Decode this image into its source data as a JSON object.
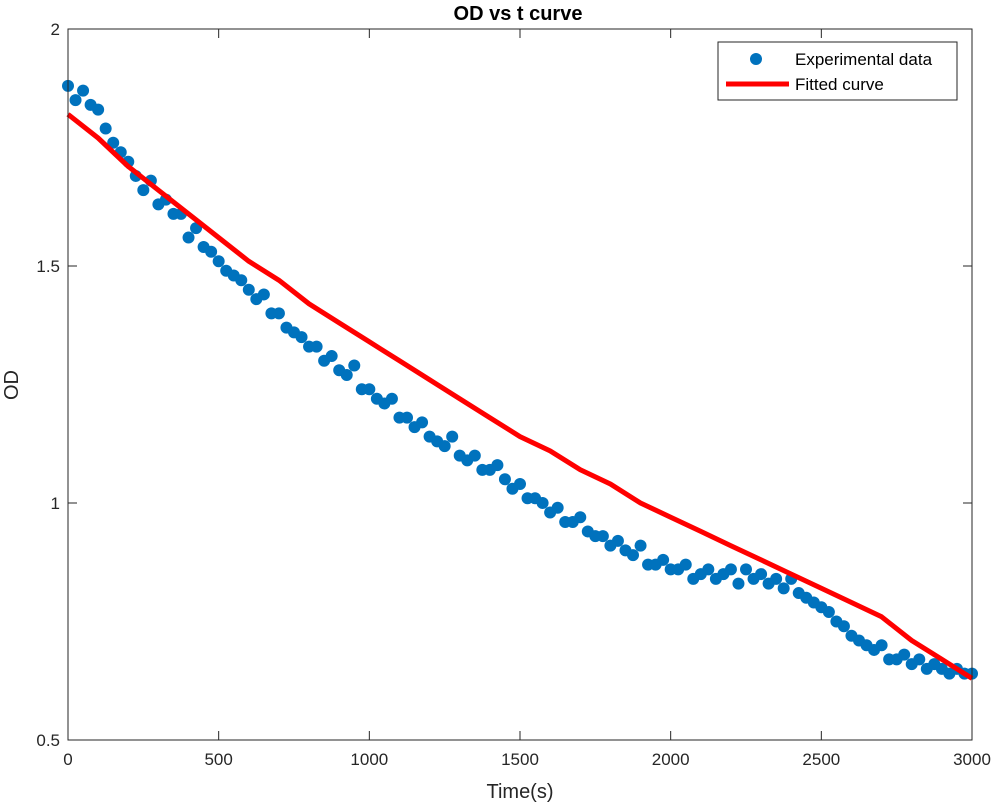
{
  "chart_data": {
    "type": "scatter",
    "title": "OD vs t curve",
    "xlabel": "Time(s)",
    "ylabel": "OD",
    "xlim": [
      0,
      3000
    ],
    "ylim": [
      0.5,
      2
    ],
    "xticks": [
      0,
      500,
      1000,
      1500,
      2000,
      2500,
      3000
    ],
    "yticks": [
      0.5,
      1,
      1.5,
      2
    ],
    "xtick_labels": [
      "0",
      "500",
      "1000",
      "1500",
      "2000",
      "2500",
      "3000"
    ],
    "ytick_labels": [
      "0.5",
      "1",
      "1.5",
      "2"
    ],
    "grid": false,
    "legend_position": "top-right",
    "series": [
      {
        "name": "Experimental data",
        "kind": "scatter",
        "color": "#0072BD",
        "x": [
          0,
          25,
          50,
          75,
          100,
          125,
          150,
          175,
          200,
          225,
          250,
          275,
          300,
          325,
          350,
          375,
          400,
          425,
          450,
          475,
          500,
          525,
          550,
          575,
          600,
          625,
          650,
          675,
          700,
          725,
          750,
          775,
          800,
          825,
          850,
          875,
          900,
          925,
          950,
          975,
          1000,
          1025,
          1050,
          1075,
          1100,
          1125,
          1150,
          1175,
          1200,
          1225,
          1250,
          1275,
          1300,
          1325,
          1350,
          1375,
          1400,
          1425,
          1450,
          1475,
          1500,
          1525,
          1550,
          1575,
          1600,
          1625,
          1650,
          1675,
          1700,
          1725,
          1750,
          1775,
          1800,
          1825,
          1850,
          1875,
          1900,
          1925,
          1950,
          1975,
          2000,
          2025,
          2050,
          2075,
          2100,
          2125,
          2150,
          2175,
          2200,
          2225,
          2250,
          2275,
          2300,
          2325,
          2350,
          2375,
          2400,
          2425,
          2450,
          2475,
          2500,
          2525,
          2550,
          2575,
          2600,
          2625,
          2650,
          2675,
          2700,
          2725,
          2750,
          2775,
          2800,
          2825,
          2850,
          2875,
          2900,
          2925,
          2950,
          2975,
          3000
        ],
        "y": [
          1.88,
          1.85,
          1.87,
          1.84,
          1.83,
          1.79,
          1.76,
          1.74,
          1.72,
          1.69,
          1.66,
          1.68,
          1.63,
          1.64,
          1.61,
          1.61,
          1.56,
          1.58,
          1.54,
          1.53,
          1.51,
          1.49,
          1.48,
          1.47,
          1.45,
          1.43,
          1.44,
          1.4,
          1.4,
          1.37,
          1.36,
          1.35,
          1.33,
          1.33,
          1.3,
          1.31,
          1.28,
          1.27,
          1.29,
          1.24,
          1.24,
          1.22,
          1.21,
          1.22,
          1.18,
          1.18,
          1.16,
          1.17,
          1.14,
          1.13,
          1.12,
          1.14,
          1.1,
          1.09,
          1.1,
          1.07,
          1.07,
          1.08,
          1.05,
          1.03,
          1.04,
          1.01,
          1.01,
          1.0,
          0.98,
          0.99,
          0.96,
          0.96,
          0.97,
          0.94,
          0.93,
          0.93,
          0.91,
          0.92,
          0.9,
          0.89,
          0.91,
          0.87,
          0.87,
          0.88,
          0.86,
          0.86,
          0.87,
          0.84,
          0.85,
          0.86,
          0.84,
          0.85,
          0.86,
          0.83,
          0.86,
          0.84,
          0.85,
          0.83,
          0.84,
          0.82,
          0.84,
          0.81,
          0.8,
          0.79,
          0.78,
          0.77,
          0.75,
          0.74,
          0.72,
          0.71,
          0.7,
          0.69,
          0.7,
          0.67,
          0.67,
          0.68,
          0.66,
          0.67,
          0.65,
          0.66,
          0.65,
          0.64,
          0.65,
          0.64,
          0.64
        ]
      },
      {
        "name": "Fitted curve",
        "kind": "line",
        "color": "#FF0000",
        "x": [
          0,
          100,
          200,
          300,
          400,
          500,
          600,
          700,
          800,
          900,
          1000,
          1100,
          1200,
          1300,
          1400,
          1500,
          1600,
          1700,
          1800,
          1900,
          2000,
          2100,
          2200,
          2300,
          2400,
          2500,
          2600,
          2700,
          2800,
          2900,
          3000
        ],
        "y": [
          1.82,
          1.77,
          1.71,
          1.66,
          1.61,
          1.56,
          1.51,
          1.47,
          1.42,
          1.38,
          1.34,
          1.3,
          1.26,
          1.22,
          1.18,
          1.14,
          1.11,
          1.07,
          1.04,
          1.0,
          0.97,
          0.94,
          0.91,
          0.88,
          0.85,
          0.82,
          0.79,
          0.76,
          0.71,
          0.67,
          0.63
        ]
      }
    ]
  }
}
